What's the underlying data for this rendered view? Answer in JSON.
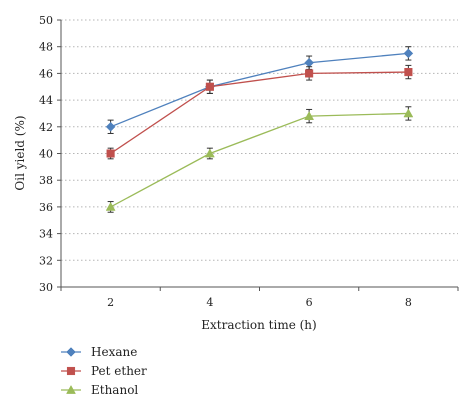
{
  "chart_data": {
    "type": "line",
    "title": "",
    "xlabel": "Extraction time (h)",
    "ylabel": "Oil yield (%)",
    "x": [
      2,
      4,
      6,
      8
    ],
    "x_ticks": [
      "2",
      "4",
      "6",
      "8"
    ],
    "ylim": [
      30,
      50
    ],
    "y_ticks": [
      "30",
      "32",
      "34",
      "36",
      "38",
      "40",
      "42",
      "44",
      "46",
      "48",
      "50"
    ],
    "grid": "horizontal dotted",
    "legend_position": "bottom-left",
    "series": [
      {
        "name": "Hexane",
        "values": [
          42.0,
          45.0,
          46.8,
          47.5
        ],
        "errors": [
          0.5,
          0.5,
          0.5,
          0.5
        ],
        "color": "#4f81bd",
        "marker": "diamond"
      },
      {
        "name": "Pet ether",
        "values": [
          40.0,
          45.0,
          46.0,
          46.1
        ],
        "errors": [
          0.4,
          0.5,
          0.5,
          0.5
        ],
        "color": "#c0504d",
        "marker": "square"
      },
      {
        "name": "Ethanol",
        "values": [
          36.0,
          40.0,
          42.8,
          43.0
        ],
        "errors": [
          0.4,
          0.4,
          0.5,
          0.5
        ],
        "color": "#9bbb59",
        "marker": "triangle"
      }
    ]
  }
}
